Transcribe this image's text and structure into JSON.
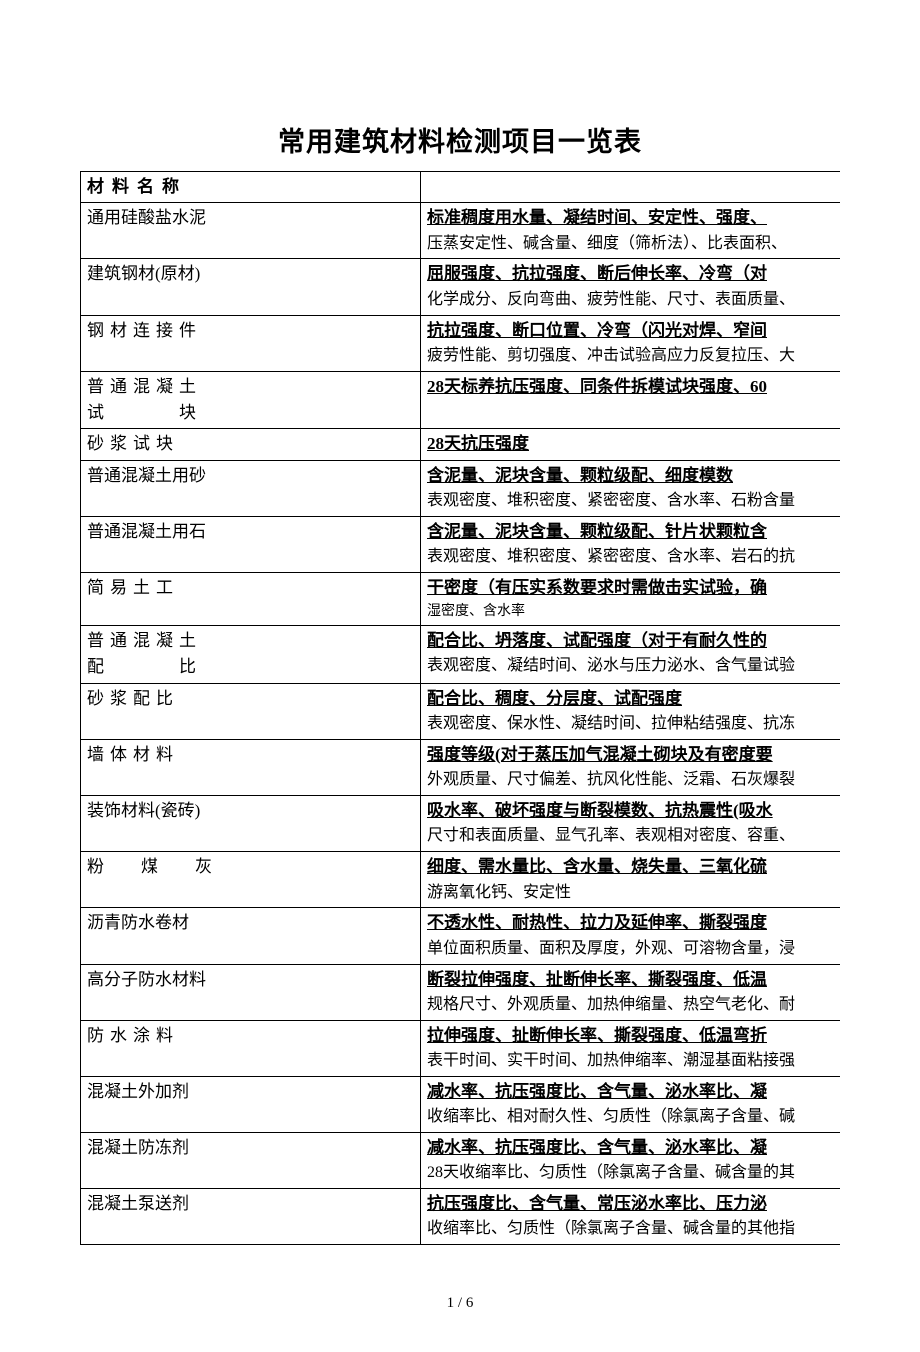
{
  "title": "常用建筑材料检测项目一览表",
  "header": {
    "col1": "材料名称"
  },
  "rows": [
    {
      "name": "通用硅酸盐水泥",
      "main": "标准稠度用水量、凝结时间、安定性、强度、",
      "sub": "压蒸安定性、碱含量、细度（筛析法）、比表面积、"
    },
    {
      "name": "建筑钢材(原材)",
      "main": "屈服强度、抗拉强度、断后伸长率、冷弯（对",
      "sub": "化学成分、反向弯曲、疲劳性能、尺寸、表面质量、"
    },
    {
      "name": "钢材连接件",
      "nameClass": "spaced",
      "main": "抗拉强度、断口位置、冷弯（闪光对焊、窄间",
      "sub": "疲劳性能、剪切强度、冲击试验高应力反复拉压、大"
    },
    {
      "name": "普通混凝土",
      "name2": "试　　　块",
      "nameClass": "spaced",
      "main": "28天标养抗压强度、同条件拆模试块强度、60"
    },
    {
      "name": "砂浆试块",
      "nameClass": "spaced",
      "main": "28天抗压强度"
    },
    {
      "name": "普通混凝土用砂",
      "main": "含泥量、泥块含量、颗粒级配、细度模数",
      "sub": "表观密度、堆积密度、紧密密度、含水率、石粉含量"
    },
    {
      "name": "普通混凝土用石",
      "main": "含泥量、泥块含量、颗粒级配、针片状颗粒含",
      "sub": "表观密度、堆积密度、紧密密度、含水率、岩石的抗"
    },
    {
      "name": "简易土工",
      "nameClass": "spaced",
      "main": "干密度（有压实系数要求时需做击实试验，确",
      "sub": "湿密度、含水率",
      "subSmall": true
    },
    {
      "name": "普通混凝土",
      "name2": "配　　　比",
      "nameClass": "spaced",
      "main": "配合比、坍落度、试配强度（对于有耐久性的",
      "sub": "表观密度、凝结时间、泌水与压力泌水、含气量试验"
    },
    {
      "name": "砂浆配比",
      "nameClass": "spaced",
      "main": "配合比、稠度、分层度、试配强度",
      "sub": "表观密度、保水性、凝结时间、拉伸粘结强度、抗冻"
    },
    {
      "name": "墙体材料",
      "nameClass": "spaced",
      "main": "强度等级(对于蒸压加气混凝土砌块及有密度要",
      "sub": "外观质量、尺寸偏差、抗风化性能、泛霜、石灰爆裂"
    },
    {
      "name": "装饰材料(瓷砖)",
      "main": "吸水率、破坏强度与断裂模数、抗热震性(吸水",
      "sub": "尺寸和表面质量、显气孔率、表观相对密度、容重、"
    },
    {
      "name": "粉　煤　灰",
      "nameClass": "spaced-med",
      "main": "细度、需水量比、含水量、烧失量、三氧化硫",
      "sub": "游离氧化钙、安定性"
    },
    {
      "name": "沥青防水卷材",
      "nameClass": "",
      "main": "不透水性、耐热性、拉力及延伸率、撕裂强度",
      "sub": "单位面积质量、面积及厚度，外观、可溶物含量，浸"
    },
    {
      "name": "高分子防水材料",
      "main": "断裂拉伸强度、扯断伸长率、撕裂强度、低温",
      "sub": "规格尺寸、外观质量、加热伸缩量、热空气老化、耐"
    },
    {
      "name": "防水涂料",
      "nameClass": "spaced",
      "main": "拉伸强度、扯断伸长率、撕裂强度、低温弯折",
      "sub": "表干时间、实干时间、加热伸缩率、潮湿基面粘接强"
    },
    {
      "name": "混凝土外加剂",
      "nameClass": "",
      "main": "减水率、抗压强度比、含气量、泌水率比、凝",
      "sub": "收缩率比、相对耐久性、匀质性（除氯离子含量、碱"
    },
    {
      "name": "混凝土防冻剂",
      "nameClass": "",
      "main": "减水率、抗压强度比、含气量、泌水率比、凝",
      "sub": "28天收缩率比、匀质性（除氯离子含量、碱含量的其"
    },
    {
      "name": "混凝土泵送剂",
      "nameClass": "",
      "main": "抗压强度比、含气量、常压泌水率比、压力泌",
      "sub": "收缩率比、匀质性（除氯离子含量、碱含量的其他指"
    }
  ],
  "footer": "1 / 6"
}
